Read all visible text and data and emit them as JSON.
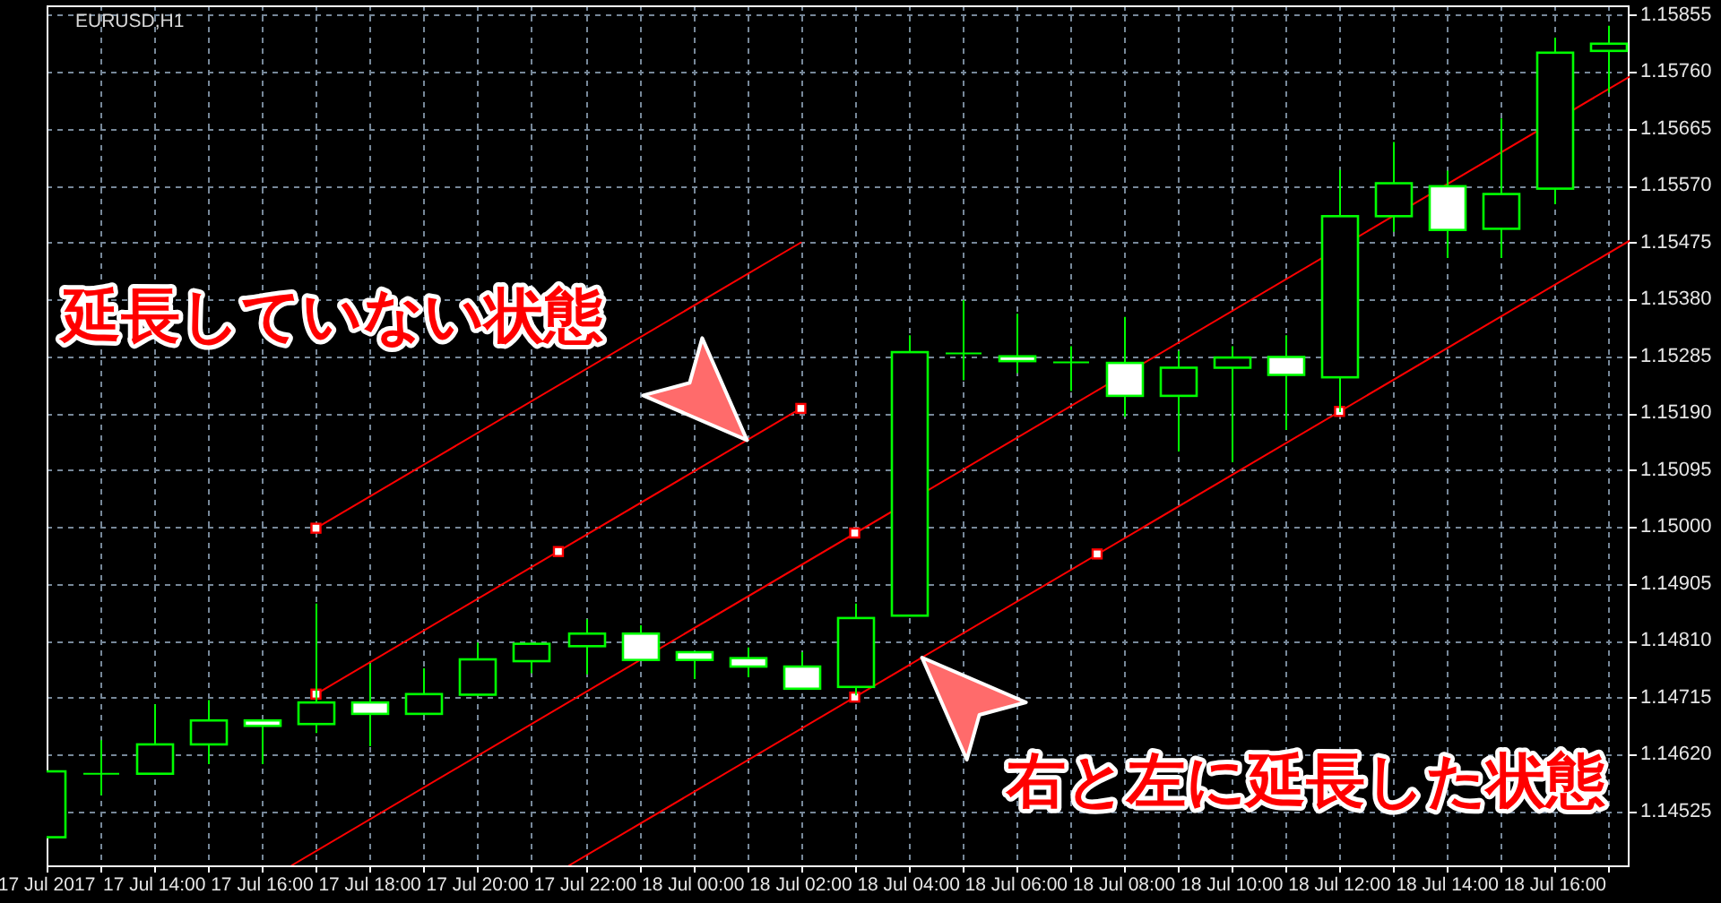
{
  "chart_data": {
    "type": "candlestick",
    "title": "EURUSD,H1",
    "color": "#00ff00",
    "x": [
      "2017-07-17T12:00",
      "2017-07-17T13:00",
      "2017-07-17T14:00",
      "2017-07-17T15:00",
      "2017-07-17T16:00",
      "2017-07-17T17:00",
      "2017-07-17T18:00",
      "2017-07-17T19:00",
      "2017-07-17T20:00",
      "2017-07-17T21:00",
      "2017-07-17T22:00",
      "2017-07-17T23:00",
      "2017-07-18T00:00",
      "2017-07-18T01:00",
      "2017-07-18T02:00",
      "2017-07-18T03:00",
      "2017-07-18T04:00",
      "2017-07-18T05:00",
      "2017-07-18T06:00",
      "2017-07-18T07:00",
      "2017-07-18T08:00",
      "2017-07-18T09:00",
      "2017-07-18T10:00",
      "2017-07-18T11:00",
      "2017-07-18T12:00",
      "2017-07-18T13:00",
      "2017-07-18T14:00",
      "2017-07-18T15:00",
      "2017-07-18T16:00",
      "2017-07-18T17:00"
    ],
    "ohlc": [
      [
        1.14482,
        1.14592,
        1.14482,
        1.14592
      ],
      [
        1.14588,
        1.14644,
        1.14552,
        1.14588
      ],
      [
        1.14588,
        1.14704,
        1.14588,
        1.14637
      ],
      [
        1.14637,
        1.14711,
        1.14604,
        1.14677
      ],
      [
        1.14677,
        1.14677,
        1.14604,
        1.14668
      ],
      [
        1.14671,
        1.14872,
        1.14656,
        1.14707
      ],
      [
        1.14707,
        1.14772,
        1.14634,
        1.14688
      ],
      [
        1.14688,
        1.14764,
        1.14688,
        1.14721
      ],
      [
        1.1472,
        1.14807,
        1.1472,
        1.14779
      ],
      [
        1.14776,
        1.14805,
        1.14756,
        1.14805
      ],
      [
        1.14801,
        1.14846,
        1.14754,
        1.14822
      ],
      [
        1.14822,
        1.14836,
        1.14778,
        1.14778
      ],
      [
        1.14791,
        1.14791,
        1.14746,
        1.14778
      ],
      [
        1.14781,
        1.14799,
        1.14749,
        1.14767
      ],
      [
        1.14767,
        1.14791,
        1.1473,
        1.1473
      ],
      [
        1.14733,
        1.14872,
        1.14719,
        1.14848
      ],
      [
        1.14852,
        1.1532,
        1.14852,
        1.15292
      ],
      [
        1.1529,
        1.15379,
        1.15245,
        1.1529
      ],
      [
        1.15285,
        1.15356,
        1.15257,
        1.15277
      ],
      [
        1.15275,
        1.15302,
        1.15227,
        1.15275
      ],
      [
        1.15274,
        1.15351,
        1.15184,
        1.15219
      ],
      [
        1.15219,
        1.15294,
        1.15126,
        1.15266
      ],
      [
        1.15266,
        1.15302,
        1.15108,
        1.15283
      ],
      [
        1.15284,
        1.1532,
        1.15162,
        1.15254
      ],
      [
        1.1525,
        1.15596,
        1.15192,
        1.15519
      ],
      [
        1.15519,
        1.15643,
        1.15493,
        1.15574
      ],
      [
        1.15569,
        1.15595,
        1.15449,
        1.15496
      ],
      [
        1.15498,
        1.15682,
        1.15449,
        1.15556
      ],
      [
        1.15565,
        1.15817,
        1.15539,
        1.15792
      ],
      [
        1.15795,
        1.15837,
        1.15725,
        1.15807
      ]
    ],
    "series": [
      {
        "type": "line",
        "color": "#ff0000",
        "x": [
          "2017-07-17T17:00",
          "2017-07-18T02:00"
        ],
        "values": [
          1.14721,
          1.15198
        ]
      },
      {
        "type": "line",
        "color": "#ff0000",
        "x": [
          "2017-07-17T17:00",
          "2017-07-18T02:00"
        ],
        "values": [
          1.14998,
          1.15475
        ]
      },
      {
        "type": "line",
        "color": "#ff0000",
        "x": [
          "2017-07-17T16:33",
          "2017-07-18T17:23"
        ],
        "values": [
          1.14435,
          1.15752
        ]
      },
      {
        "type": "line",
        "color": "#ff0000",
        "x": [
          "2017-07-17T21:42",
          "2017-07-18T17:23"
        ],
        "values": [
          1.14435,
          1.15478
        ]
      },
      {
        "type": "scatter",
        "color": "#ff0000",
        "marker": "square",
        "x": [
          "2017-07-17T17:00",
          "2017-07-17T21:30",
          "2017-07-18T02:00",
          "2017-07-17T17:00",
          "2017-07-18T03:00",
          "2017-07-18T07:30",
          "2017-07-18T12:00",
          "2017-07-18T03:00"
        ],
        "values": [
          1.14721,
          1.14959,
          1.15198,
          1.14998,
          1.14716,
          1.14955,
          1.15193,
          1.1499
        ]
      }
    ],
    "xlim": [
      "2017-07-17T12:00",
      "2017-07-18T17:23"
    ],
    "ylim": [
      1.14435,
      1.15871
    ],
    "xticks": [
      {
        "value": "2017-07-17T12:00",
        "label": "17 Jul 2017"
      },
      {
        "value": "2017-07-17T13:00",
        "label": null
      },
      {
        "value": "2017-07-17T14:00",
        "label": "17 Jul 14:00"
      },
      {
        "value": "2017-07-17T15:00",
        "label": null
      },
      {
        "value": "2017-07-17T16:00",
        "label": "17 Jul 16:00"
      },
      {
        "value": "2017-07-17T17:00",
        "label": null
      },
      {
        "value": "2017-07-17T18:00",
        "label": "17 Jul 18:00"
      },
      {
        "value": "2017-07-17T19:00",
        "label": null
      },
      {
        "value": "2017-07-17T20:00",
        "label": "17 Jul 20:00"
      },
      {
        "value": "2017-07-17T21:00",
        "label": null
      },
      {
        "value": "2017-07-17T22:00",
        "label": "17 Jul 22:00"
      },
      {
        "value": "2017-07-17T23:00",
        "label": null
      },
      {
        "value": "2017-07-18T00:00",
        "label": "18 Jul 00:00"
      },
      {
        "value": "2017-07-18T01:00",
        "label": null
      },
      {
        "value": "2017-07-18T02:00",
        "label": "18 Jul 02:00"
      },
      {
        "value": "2017-07-18T03:00",
        "label": null
      },
      {
        "value": "2017-07-18T04:00",
        "label": "18 Jul 04:00"
      },
      {
        "value": "2017-07-18T05:00",
        "label": null
      },
      {
        "value": "2017-07-18T06:00",
        "label": "18 Jul 06:00"
      },
      {
        "value": "2017-07-18T07:00",
        "label": null
      },
      {
        "value": "2017-07-18T08:00",
        "label": "18 Jul 08:00"
      },
      {
        "value": "2017-07-18T09:00",
        "label": null
      },
      {
        "value": "2017-07-18T10:00",
        "label": "18 Jul 10:00"
      },
      {
        "value": "2017-07-18T11:00",
        "label": null
      },
      {
        "value": "2017-07-18T12:00",
        "label": "18 Jul 12:00"
      },
      {
        "value": "2017-07-18T13:00",
        "label": null
      },
      {
        "value": "2017-07-18T14:00",
        "label": "18 Jul 14:00"
      },
      {
        "value": "2017-07-18T15:00",
        "label": null
      },
      {
        "value": "2017-07-18T16:00",
        "label": "18 Jul 16:00"
      },
      {
        "value": "2017-07-18T17:00",
        "label": null
      }
    ],
    "yticks": [
      1.14525,
      {
        "value": 1.1462,
        "label": "1.14620"
      },
      1.14715,
      {
        "value": 1.1481,
        "label": "1.14810"
      },
      1.14905,
      {
        "value": 1.15,
        "label": "1.15000"
      },
      1.15095,
      {
        "value": 1.1519,
        "label": "1.15190"
      },
      1.15285,
      {
        "value": 1.1538,
        "label": "1.15380"
      },
      1.15475,
      {
        "value": 1.1557,
        "label": "1.15570"
      },
      1.15665,
      {
        "value": 1.1576,
        "label": "1.15760"
      },
      1.15855
    ],
    "grid": true,
    "annotations": [
      {
        "text": "延長していない状態",
        "x": "2017-07-18T01:00",
        "y": 1.15145
      },
      {
        "text": "右と左に延長した状態",
        "x": "2017-07-18T04:15",
        "y": 1.14782
      }
    ]
  }
}
